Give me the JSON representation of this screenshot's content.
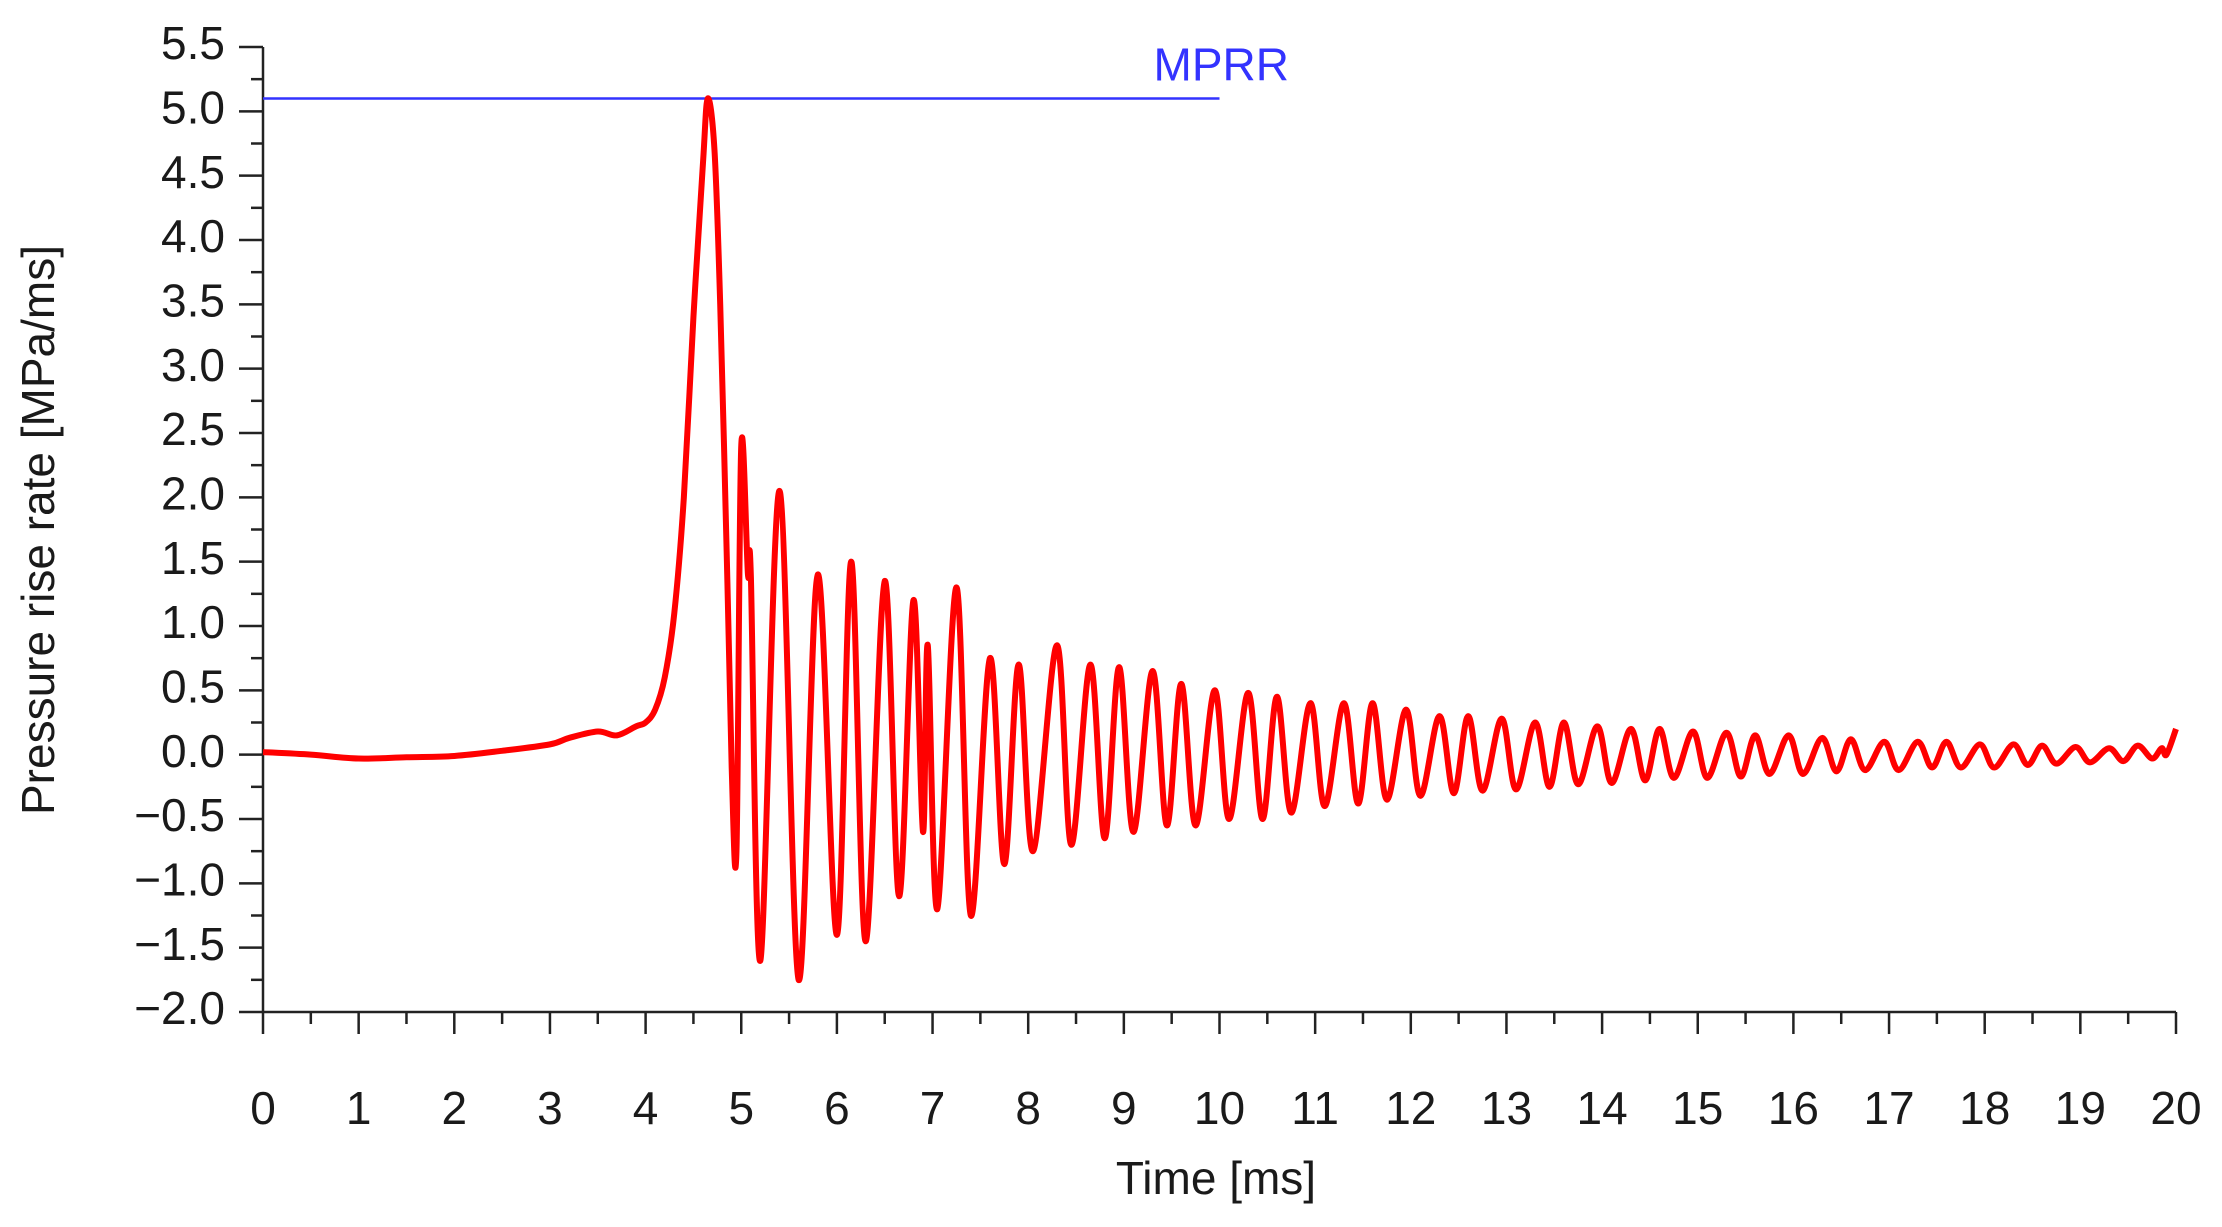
{
  "chart_data": {
    "type": "line",
    "x_label": "Time [ms]",
    "y_label": "Pressure rise rate [MPa/ms]",
    "color": "#ff0000",
    "x": [
      0,
      0.5,
      1,
      1.5,
      2,
      2.5,
      3,
      3.2,
      3.5,
      3.7,
      3.9,
      4.0,
      4.1,
      4.2,
      4.3,
      4.4,
      4.5,
      4.6,
      4.65,
      4.72,
      4.78,
      4.85,
      4.9,
      4.95,
      5.0,
      5.07,
      5.1,
      5.2,
      5.4,
      5.6,
      5.8,
      6.0,
      6.15,
      6.3,
      6.5,
      6.65,
      6.8,
      6.9,
      6.95,
      7.05,
      7.25,
      7.4,
      7.6,
      7.75,
      7.9,
      8.05,
      8.3,
      8.45,
      8.65,
      8.8,
      8.95,
      9.1,
      9.3,
      9.45,
      9.6,
      9.75,
      9.95,
      10.1,
      10.3,
      10.45,
      10.6,
      10.75,
      10.95,
      11.1,
      11.3,
      11.45,
      11.6,
      11.75,
      11.95,
      12.1,
      12.3,
      12.45,
      12.6,
      12.75,
      12.95,
      13.1,
      13.3,
      13.45,
      13.6,
      13.75,
      13.95,
      14.1,
      14.3,
      14.45,
      14.6,
      14.75,
      14.95,
      15.1,
      15.3,
      15.45,
      15.6,
      15.75,
      15.95,
      16.1,
      16.3,
      16.45,
      16.6,
      16.75,
      16.95,
      17.1,
      17.3,
      17.45,
      17.6,
      17.75,
      17.95,
      18.1,
      18.3,
      18.45,
      18.6,
      18.75,
      18.95,
      19.1,
      19.3,
      19.45,
      19.6,
      19.75,
      19.85,
      19.9,
      20
    ],
    "values": [
      0.02,
      0.0,
      -0.03,
      -0.02,
      -0.01,
      0.03,
      0.08,
      0.13,
      0.18,
      0.15,
      0.22,
      0.25,
      0.35,
      0.6,
      1.1,
      2.0,
      3.4,
      4.6,
      5.1,
      4.7,
      3.5,
      1.5,
      -0.1,
      -0.75,
      2.4,
      1.4,
      1.4,
      -1.6,
      2.05,
      -1.75,
      1.4,
      -1.4,
      1.5,
      -1.45,
      1.35,
      -1.1,
      1.2,
      -0.6,
      0.85,
      -1.2,
      1.3,
      -1.25,
      0.75,
      -0.85,
      0.7,
      -0.75,
      0.85,
      -0.7,
      0.7,
      -0.65,
      0.68,
      -0.6,
      0.65,
      -0.55,
      0.55,
      -0.55,
      0.5,
      -0.5,
      0.48,
      -0.5,
      0.45,
      -0.45,
      0.4,
      -0.4,
      0.4,
      -0.38,
      0.4,
      -0.35,
      0.35,
      -0.32,
      0.3,
      -0.3,
      0.3,
      -0.28,
      0.28,
      -0.27,
      0.25,
      -0.25,
      0.25,
      -0.23,
      0.22,
      -0.22,
      0.2,
      -0.2,
      0.2,
      -0.18,
      0.18,
      -0.18,
      0.17,
      -0.17,
      0.15,
      -0.15,
      0.15,
      -0.15,
      0.13,
      -0.13,
      0.12,
      -0.12,
      0.1,
      -0.12,
      0.1,
      -0.1,
      0.1,
      -0.1,
      0.08,
      -0.1,
      0.08,
      -0.08,
      0.07,
      -0.07,
      0.06,
      -0.06,
      0.05,
      -0.05,
      0.07,
      -0.03,
      0.05,
      0.0,
      0.2
    ],
    "reference_line": {
      "label": "MPRR",
      "value": 5.1,
      "x_range": [
        0,
        10
      ],
      "color": "#3333ff"
    },
    "xlim": [
      0,
      20
    ],
    "ylim": [
      -2,
      5.5
    ],
    "xticks": [
      0,
      1,
      2,
      3,
      4,
      5,
      6,
      7,
      8,
      9,
      10,
      11,
      12,
      13,
      14,
      15,
      16,
      17,
      18,
      19,
      20
    ],
    "yticks": [
      {
        "value": -2,
        "label": "−2.0"
      },
      {
        "value": -1.5,
        "label": "−1.5"
      },
      {
        "value": -1,
        "label": "−1.0"
      },
      {
        "value": -0.5,
        "label": "−0.5"
      },
      {
        "value": 0,
        "label": "0.0"
      },
      0.5,
      {
        "value": 1,
        "label": "1.0"
      },
      1.5,
      {
        "value": 2,
        "label": "2.0"
      },
      2.5,
      {
        "value": 3,
        "label": "3.0"
      },
      3.5,
      {
        "value": 4,
        "label": "4.0"
      },
      4.5,
      {
        "value": 5,
        "label": "5.0"
      },
      5.5
    ],
    "xminorticks": [
      0.5,
      1.5,
      2.5,
      3.5,
      4.5,
      5.5,
      6.5,
      7.5,
      8.5,
      9.5,
      10.5,
      11.5,
      12.5,
      13.5,
      14.5,
      15.5,
      16.5,
      17.5,
      18.5,
      19.5
    ],
    "yminorticks": [
      -1.75,
      -1.25,
      -0.75,
      -0.25,
      0.25,
      0.75,
      1.25,
      1.75,
      2.25,
      2.75,
      3.25,
      3.75,
      4.25,
      4.75,
      5.25
    ]
  }
}
